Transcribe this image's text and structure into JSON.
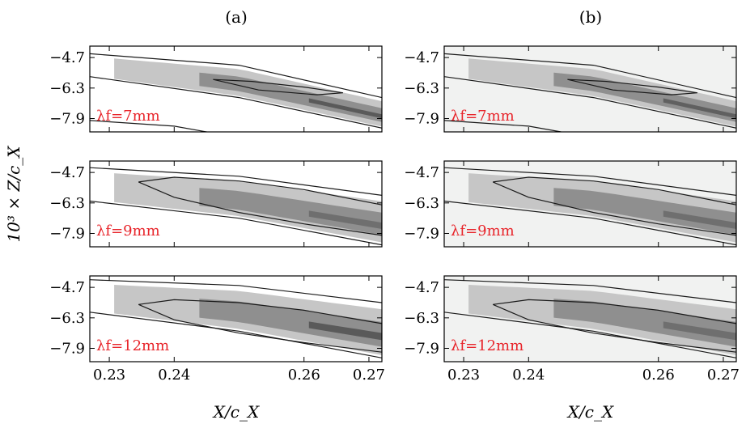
{
  "figure": {
    "ylabel": "10³ × Z/c_X",
    "columns": [
      {
        "label": "(a)",
        "xlabel": "X/c_X"
      },
      {
        "label": "(b)",
        "xlabel": "X/c_X"
      }
    ]
  },
  "chart_data": [
    {
      "type": "contour",
      "column": "(a)",
      "annotation": "λf=7mm",
      "xlim": [
        0.227,
        0.272
      ],
      "ylim": [
        -8.6,
        -4.1
      ],
      "x_ticks": [
        0.23,
        0.24,
        0.26,
        0.27
      ],
      "y_ticks": [
        -4.7,
        -6.3,
        -7.9
      ],
      "background_fill": "#ffffff",
      "fill_levels": [
        "#c6c6c6",
        "#8f8f8f",
        "#2f2f2f"
      ],
      "contour_lines": [
        {
          "x": [
            0.227,
            0.25,
            0.272
          ],
          "y": [
            -4.5,
            -5.1,
            -6.8
          ]
        },
        {
          "x": [
            0.227,
            0.25,
            0.272
          ],
          "y": [
            -5.7,
            -6.8,
            -8.4
          ]
        },
        {
          "x": [
            0.227,
            0.24,
            0.245
          ],
          "y": [
            -8.0,
            -8.3,
            -8.6
          ]
        },
        {
          "x": [
            0.246,
            0.252,
            0.26,
            0.266,
            0.262,
            0.253,
            0.246
          ],
          "y": [
            -5.85,
            -5.95,
            -6.25,
            -6.55,
            -6.65,
            -6.4,
            -5.85
          ]
        }
      ]
    },
    {
      "type": "contour",
      "column": "(b)",
      "annotation": "λf=7mm",
      "xlim": [
        0.227,
        0.272
      ],
      "ylim": [
        -8.6,
        -4.1
      ],
      "x_ticks": [
        0.23,
        0.24,
        0.26,
        0.27
      ],
      "y_ticks": [
        -4.7,
        -6.3,
        -7.9
      ],
      "background_fill": "#f1f2f1",
      "fill_levels": [
        "#c6c6c6",
        "#8f8f8f",
        "#3a3a3a"
      ],
      "contour_lines": [
        {
          "x": [
            0.227,
            0.25,
            0.272
          ],
          "y": [
            -4.5,
            -5.1,
            -6.8
          ]
        },
        {
          "x": [
            0.227,
            0.25,
            0.272
          ],
          "y": [
            -5.7,
            -6.8,
            -8.4
          ]
        },
        {
          "x": [
            0.227,
            0.24,
            0.245
          ],
          "y": [
            -8.0,
            -8.3,
            -8.6
          ]
        },
        {
          "x": [
            0.246,
            0.252,
            0.26,
            0.266,
            0.262,
            0.253,
            0.246
          ],
          "y": [
            -5.85,
            -5.95,
            -6.25,
            -6.55,
            -6.65,
            -6.4,
            -5.85
          ]
        }
      ]
    },
    {
      "type": "contour",
      "column": "(a)",
      "annotation": "λf=9mm",
      "xlim": [
        0.227,
        0.272
      ],
      "ylim": [
        -8.6,
        -4.1
      ],
      "x_ticks": [
        0.23,
        0.24,
        0.26,
        0.27
      ],
      "y_ticks": [
        -4.7,
        -6.3,
        -7.9
      ],
      "background_fill": "#ffffff",
      "fill_levels": [
        "#c6c6c6",
        "#8f8f8f",
        "#555555"
      ],
      "contour_lines": [
        {
          "x": [
            0.227,
            0.25,
            0.272
          ],
          "y": [
            -4.45,
            -4.9,
            -5.9
          ]
        },
        {
          "x": [
            0.227,
            0.25,
            0.272
          ],
          "y": [
            -6.2,
            -7.1,
            -8.5
          ]
        },
        {
          "x": [
            0.2345,
            0.24,
            0.25,
            0.26,
            0.272,
            0.272,
            0.26,
            0.25,
            0.24,
            0.2345
          ],
          "y": [
            -5.2,
            -4.95,
            -5.15,
            -5.6,
            -6.4,
            -8.0,
            -7.4,
            -6.8,
            -6.0,
            -5.2
          ]
        }
      ]
    },
    {
      "type": "contour",
      "column": "(b)",
      "annotation": "λf=9mm",
      "xlim": [
        0.227,
        0.272
      ],
      "ylim": [
        -8.6,
        -4.1
      ],
      "x_ticks": [
        0.23,
        0.24,
        0.26,
        0.27
      ],
      "y_ticks": [
        -4.7,
        -6.3,
        -7.9
      ],
      "background_fill": "#f1f2f1",
      "fill_levels": [
        "#c6c6c6",
        "#8f8f8f",
        "#555555"
      ],
      "contour_lines": [
        {
          "x": [
            0.227,
            0.25,
            0.272
          ],
          "y": [
            -4.45,
            -4.9,
            -5.9
          ]
        },
        {
          "x": [
            0.227,
            0.25,
            0.272
          ],
          "y": [
            -6.2,
            -7.1,
            -8.5
          ]
        },
        {
          "x": [
            0.2345,
            0.24,
            0.25,
            0.26,
            0.272,
            0.272,
            0.26,
            0.25,
            0.24,
            0.2345
          ],
          "y": [
            -5.2,
            -4.95,
            -5.15,
            -5.6,
            -6.4,
            -8.0,
            -7.4,
            -6.8,
            -6.0,
            -5.2
          ]
        }
      ]
    },
    {
      "type": "contour",
      "column": "(a)",
      "annotation": "λf=12mm",
      "xlim": [
        0.227,
        0.272
      ],
      "ylim": [
        -8.6,
        -4.1
      ],
      "x_ticks": [
        0.23,
        0.24,
        0.26,
        0.27
      ],
      "y_ticks": [
        -4.7,
        -6.3,
        -7.9
      ],
      "background_fill": "#ffffff",
      "fill_levels": [
        "#c6c6c6",
        "#8f8f8f",
        "#2f2f2f"
      ],
      "contour_lines": [
        {
          "x": [
            0.227,
            0.25,
            0.272
          ],
          "y": [
            -4.3,
            -4.6,
            -5.5
          ]
        },
        {
          "x": [
            0.227,
            0.25,
            0.272
          ],
          "y": [
            -6.0,
            -7.0,
            -8.4
          ]
        },
        {
          "x": [
            0.2345,
            0.24,
            0.25,
            0.26,
            0.272,
            0.272,
            0.26,
            0.25,
            0.24,
            0.2345
          ],
          "y": [
            -5.6,
            -5.35,
            -5.5,
            -5.9,
            -6.6,
            -8.1,
            -7.6,
            -7.1,
            -6.4,
            -5.6
          ]
        }
      ]
    },
    {
      "type": "contour",
      "column": "(b)",
      "annotation": "λf=12mm",
      "xlim": [
        0.227,
        0.272
      ],
      "ylim": [
        -8.6,
        -4.1
      ],
      "x_ticks": [
        0.23,
        0.24,
        0.26,
        0.27
      ],
      "y_ticks": [
        -4.7,
        -6.3,
        -7.9
      ],
      "background_fill": "#f1f2f1",
      "fill_levels": [
        "#c6c6c6",
        "#8f8f8f",
        "#555555"
      ],
      "contour_lines": [
        {
          "x": [
            0.227,
            0.25,
            0.272
          ],
          "y": [
            -4.3,
            -4.6,
            -5.5
          ]
        },
        {
          "x": [
            0.227,
            0.25,
            0.272
          ],
          "y": [
            -6.0,
            -7.0,
            -8.4
          ]
        },
        {
          "x": [
            0.2345,
            0.24,
            0.25,
            0.26,
            0.272,
            0.272,
            0.26,
            0.25,
            0.24,
            0.2345
          ],
          "y": [
            -5.6,
            -5.35,
            -5.5,
            -5.9,
            -6.6,
            -8.1,
            -7.6,
            -7.1,
            -6.4,
            -5.6
          ]
        }
      ]
    }
  ]
}
